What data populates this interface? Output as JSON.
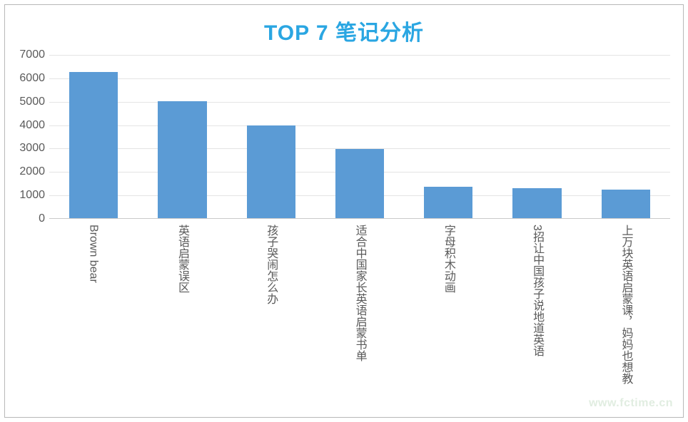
{
  "chart": {
    "type": "bar",
    "title": "TOP 7 笔记分析",
    "title_color": "#2aa6e2",
    "title_fontsize": 30,
    "background_color": "#ffffff",
    "border_color": "#b8b8b8",
    "grid_color": "#e4e4e4",
    "axis_color": "#c9c9c9",
    "ylim": [
      0,
      7000
    ],
    "ytick_step": 1000,
    "yticks": [
      0,
      1000,
      2000,
      3000,
      4000,
      5000,
      6000,
      7000
    ],
    "tick_fontsize": 16,
    "xlabel_fontsize": 16,
    "label_color": "#5a5a5a",
    "categories": [
      "Brown bear",
      "英语启蒙误区",
      "孩子哭闹怎么办",
      "适合中国家长英语启蒙书单",
      "字母积木动画",
      "3招让中国孩子说地道英语",
      "上万块英语启蒙课，妈妈也想教"
    ],
    "values": [
      6250,
      4980,
      3950,
      2950,
      1330,
      1270,
      1220
    ],
    "bar_color": "#5b9bd5",
    "bar_width_ratio": 0.55
  },
  "watermark": "www.fctime.cn"
}
